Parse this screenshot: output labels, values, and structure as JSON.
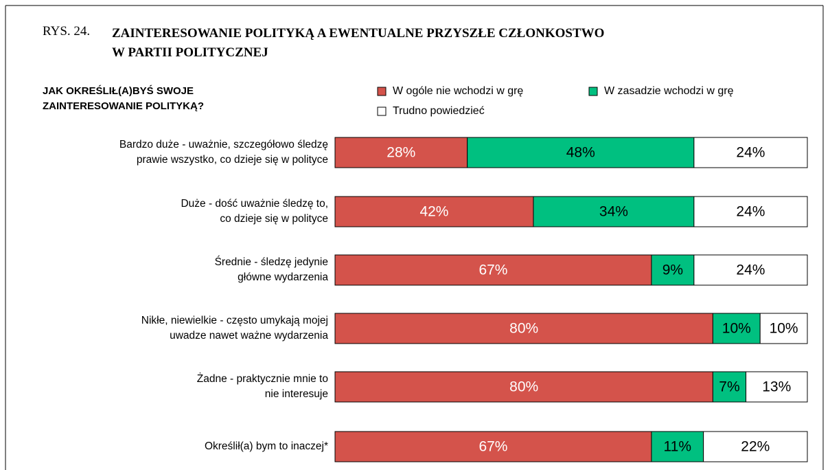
{
  "chart_data": {
    "type": "bar",
    "orientation": "horizontal",
    "stacked": true,
    "figure_label": "RYS. 24.",
    "title": "ZAINTERESOWANIE POLITYKĄ A EWENTUALNE PRZYSZŁE CZŁONKOSTWO\nW PARTII POLITYCZNEJ",
    "y_label": "JAK OKREŚLIŁ(A)BYŚ SWOJE\nZAINTERESOWANIE POLITYKĄ?",
    "categories": [
      "Bardzo duże - uważnie, szczegółowo śledzę\nprawie wszystko, co dzieje się w polityce",
      "Duże - dość uważnie śledzę to,\nco dzieje się w polityce",
      "Średnie - śledzę jedynie\ngłówne wydarzenia",
      "Nikłe, niewielkie - często umykają mojej\nuwadze nawet ważne wydarzenia",
      "Żadne - praktycznie mnie to\nnie interesuje",
      "Określił(a) bym to inaczej*"
    ],
    "series": [
      {
        "name": "W ogóle nie wchodzi w grę",
        "color": "#d4534b",
        "label_color": "#ffffff",
        "values": [
          28,
          42,
          67,
          80,
          80,
          67
        ],
        "value_labels": [
          "28%",
          "42%",
          "67%",
          "80%",
          "80%",
          "67%"
        ]
      },
      {
        "name": "W zasadzie wchodzi w grę",
        "color": "#00c080",
        "label_color": "#000000",
        "values": [
          48,
          34,
          9,
          10,
          7,
          11
        ],
        "value_labels": [
          "48%",
          "34%",
          "9%",
          "10%",
          "7%",
          "11%"
        ]
      },
      {
        "name": "Trudno powiedzieć",
        "color": "#ffffff",
        "label_color": "#000000",
        "values": [
          24,
          24,
          24,
          10,
          13,
          22
        ],
        "value_labels": [
          "24%",
          "24%",
          "24%",
          "10%",
          "13%",
          "22%"
        ]
      }
    ],
    "xlim": [
      0,
      100
    ]
  }
}
